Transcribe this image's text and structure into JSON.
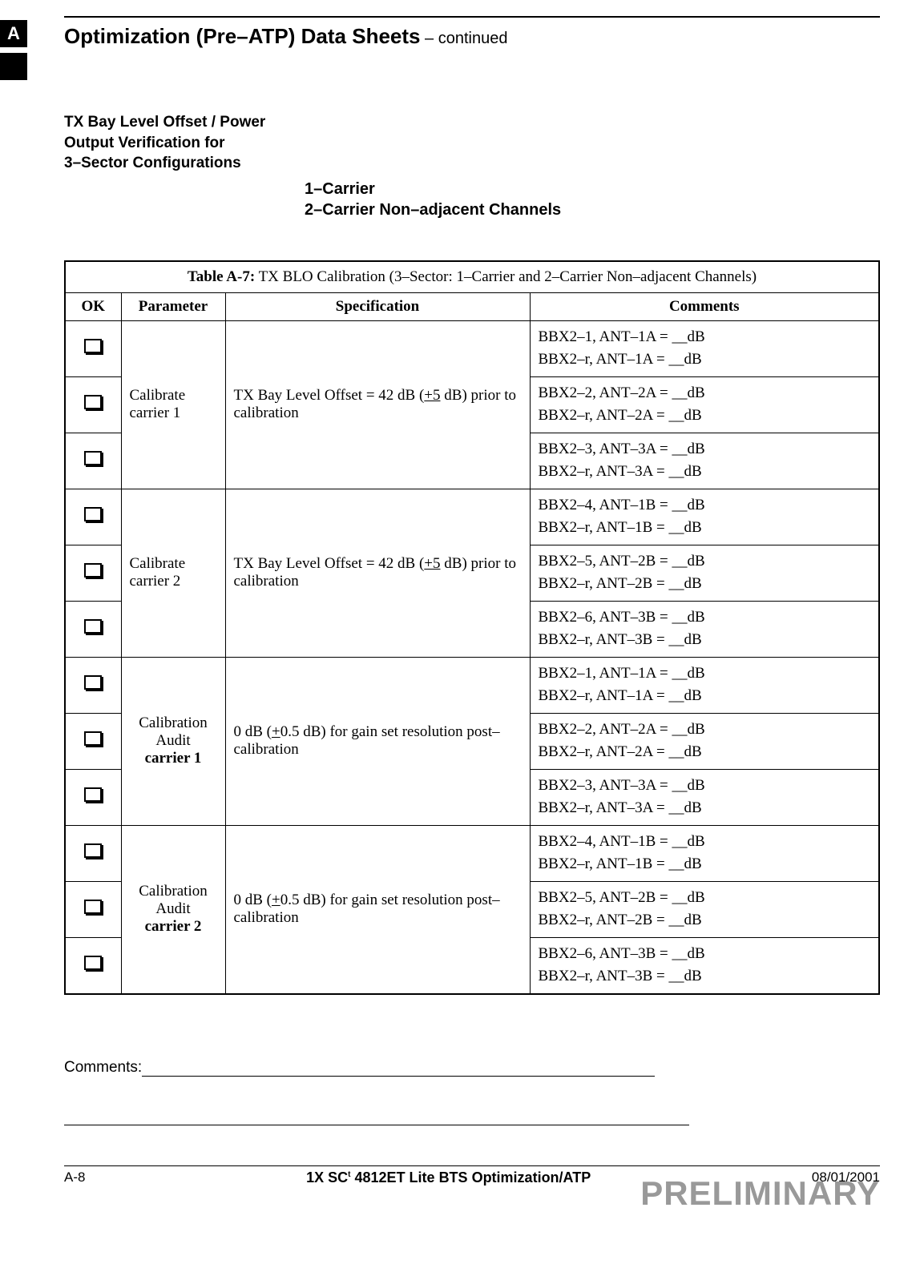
{
  "header": {
    "tab_letter": "A",
    "title_main": "Optimization (Pre–ATP) Data Sheets",
    "title_suffix": " – continued"
  },
  "section": {
    "heading_line1": "TX Bay Level Offset / Power",
    "heading_line2": "Output Verification for",
    "heading_line3": "3–Sector Configurations",
    "sub_line1": "1–Carrier",
    "sub_line2": "2–Carrier Non–adjacent Channels"
  },
  "table": {
    "caption_label": "Table A-7:",
    "caption_text": " TX BLO Calibration (3–Sector: 1–Carrier and 2–Carrier Non–adjacent Channels)",
    "headers": {
      "ok": "OK",
      "parameter": "Parameter",
      "specification": "Specification",
      "comments": "Comments"
    },
    "groups": [
      {
        "parameter": "Calibrate carrier 1",
        "spec_prefix": "TX Bay Level Offset = 42 dB (",
        "spec_tol": "+5",
        "spec_suffix": " dB) prior to calibration",
        "rows": [
          {
            "c1": "BBX2–1, ANT–1A = __dB",
            "c2": "BBX2–r, ANT–1A = __dB"
          },
          {
            "c1": "BBX2–2, ANT–2A = __dB",
            "c2": "BBX2–r, ANT–2A = __dB"
          },
          {
            "c1": "BBX2–3, ANT–3A = __dB",
            "c2": "BBX2–r, ANT–3A = __dB"
          }
        ]
      },
      {
        "parameter": "Calibrate carrier 2",
        "spec_prefix": "TX Bay Level Offset = 42 dB (",
        "spec_tol": "+5",
        "spec_suffix": " dB) prior to calibration",
        "rows": [
          {
            "c1": "BBX2–4, ANT–1B = __dB",
            "c2": "BBX2–r, ANT–1B = __dB"
          },
          {
            "c1": "BBX2–5, ANT–2B = __dB",
            "c2": "BBX2–r, ANT–2B = __dB"
          },
          {
            "c1": "BBX2–6, ANT–3B = __dB",
            "c2": "BBX2–r, ANT–3B = __dB"
          }
        ]
      },
      {
        "param_line1": "Calibration",
        "param_line2": "Audit",
        "param_line3": "carrier 1",
        "spec_prefix": "0 dB (",
        "spec_tol": "+",
        "spec_mid": "0.5 dB) for gain set resolution post–calibration",
        "rows": [
          {
            "c1": "BBX2–1, ANT–1A = __dB",
            "c2": "BBX2–r, ANT–1A = __dB"
          },
          {
            "c1": "BBX2–2, ANT–2A = __dB",
            "c2": "BBX2–r, ANT–2A = __dB"
          },
          {
            "c1": "BBX2–3, ANT–3A = __dB",
            "c2": "BBX2–r, ANT–3A = __dB"
          }
        ]
      },
      {
        "param_line1": "Calibration",
        "param_line2": "Audit",
        "param_line3": "carrier 2",
        "spec_prefix": "0 dB (",
        "spec_tol": "+",
        "spec_mid": "0.5 dB) for gain set resolution post–calibration",
        "rows": [
          {
            "c1": "BBX2–4, ANT–1B = __dB",
            "c2": "BBX2–r, ANT–1B = __dB"
          },
          {
            "c1": "BBX2–5, ANT–2B = __dB",
            "c2": "BBX2–r, ANT–2B = __dB"
          },
          {
            "c1": "BBX2–6, ANT–3B = __dB",
            "c2": "BBX2–r, ANT–3B = __dB"
          }
        ]
      }
    ]
  },
  "comments_label": "Comments:",
  "footer": {
    "page": "A-8",
    "center_prefix": "1X SC",
    "center_tm": "t",
    "center_suffix": "4812ET Lite BTS Optimization/ATP",
    "date": "08/01/2001",
    "watermark": "PRELIMINARY"
  },
  "styling": {
    "font_body": "Times New Roman",
    "font_heading": "Arial",
    "title_fontsize_pt": 20,
    "section_heading_fontsize_pt": 14,
    "table_fontsize_pt": 14,
    "border_color": "#000000",
    "background_color": "#ffffff",
    "watermark_color": "#999999",
    "tab_bg": "#000000",
    "tab_fg": "#ffffff"
  }
}
